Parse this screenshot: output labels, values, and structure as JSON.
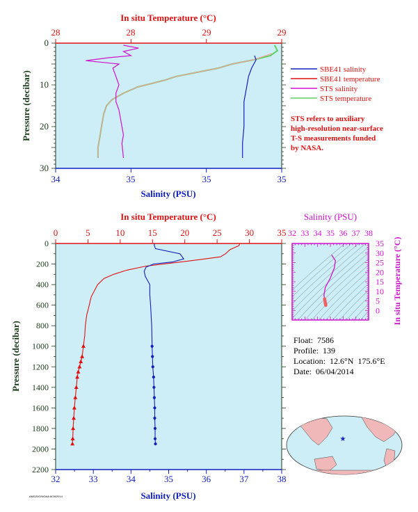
{
  "colors": {
    "plot_bg": "#cdeef6",
    "red": "#e01010",
    "blue": "#1020c0",
    "magenta": "#d010d0",
    "green": "#60d060",
    "pink": "#f0a0a0",
    "axis_green": "#1a3a1a",
    "land": "#f0b8b8"
  },
  "chart_data": [
    {
      "type": "line",
      "panel": "near-surface",
      "top_axis_label": "In situ Temperature (°C)",
      "top_ticks": [
        "28",
        "28",
        "29",
        "29"
      ],
      "top_range": [
        27.9,
        29.5
      ],
      "bottom_axis_label": "Salinity (PSU)",
      "bottom_ticks": [
        "34",
        "35",
        "35",
        "35"
      ],
      "bottom_range": [
        34.0,
        35.5
      ],
      "left_axis_label": "Pressure (decibar)",
      "left_ticks": [
        "0",
        "10",
        "20",
        "30"
      ],
      "ylim": [
        0,
        30
      ],
      "legend": [
        {
          "label": "SBE41 salinity",
          "color": "#1020c0"
        },
        {
          "label": "SBE41 temperature",
          "color": "#e01010"
        },
        {
          "label": "STS salinity",
          "color": "#d010d0"
        },
        {
          "label": "STS temperature",
          "color": "#60d060"
        }
      ],
      "note": [
        "STS refers to auxiliary",
        "high-resolution near-surface",
        "T-S measurements funded",
        "by NASA."
      ],
      "series": [
        {
          "name": "STS temperature",
          "axis": "temp",
          "x": [
            29.45,
            29.47,
            29.42,
            29.3,
            29.15,
            29.05,
            28.9,
            28.75,
            28.68,
            28.6,
            28.48,
            28.38,
            28.3,
            28.26,
            28.24,
            28.23,
            28.22,
            28.21,
            28.2,
            28.2
          ],
          "y": [
            0.5,
            1.8,
            3,
            4,
            5,
            6,
            7,
            8,
            8.8,
            9.5,
            10.5,
            12,
            13.5,
            15,
            17,
            19,
            21,
            23,
            25,
            27.5
          ]
        },
        {
          "name": "SBE41 temperature",
          "axis": "temp",
          "x": [
            29.43,
            29.3,
            29.15,
            29.05,
            28.9,
            28.75,
            28.68,
            28.6,
            28.48,
            28.38,
            28.3,
            28.26,
            28.24,
            28.23,
            28.22,
            28.21,
            28.2,
            28.2
          ],
          "y": [
            2.5,
            4,
            5,
            6,
            7,
            8,
            8.8,
            9.5,
            10.5,
            12,
            13.5,
            15,
            17,
            19,
            21,
            23,
            25,
            27.5
          ]
        },
        {
          "name": "STS salinity",
          "axis": "sal",
          "x": [
            34.45,
            34.55,
            34.45,
            34.5,
            34.35,
            34.2,
            34.42,
            34.38,
            34.4,
            34.42,
            34.4,
            34.4,
            34.42,
            34.43,
            34.44,
            34.45,
            34.44,
            34.45
          ],
          "y": [
            0.5,
            1.2,
            2,
            3,
            3.5,
            4.2,
            5,
            6,
            8,
            10,
            12,
            14,
            16,
            18,
            20,
            22,
            24,
            27.5
          ]
        },
        {
          "name": "SBE41 salinity",
          "axis": "sal",
          "x": [
            35.32,
            35.33,
            35.3,
            35.28,
            35.27,
            35.26,
            35.25,
            35.25,
            35.25,
            35.24,
            35.24
          ],
          "y": [
            3,
            4,
            6,
            8,
            10,
            12,
            14,
            16,
            20,
            24,
            27.5
          ]
        }
      ]
    },
    {
      "type": "line",
      "panel": "full-profile",
      "top_axis_label": "In situ Temperature (°C)",
      "top_ticks": [
        "0",
        "5",
        "10",
        "15",
        "20",
        "25",
        "30",
        "35"
      ],
      "top_range": [
        0,
        35
      ],
      "bottom_axis_label": "Salinity (PSU)",
      "bottom_ticks": [
        "32",
        "33",
        "34",
        "35",
        "36",
        "37",
        "38"
      ],
      "bottom_range": [
        32,
        38
      ],
      "left_axis_label": "Pressure (decibar)",
      "left_ticks": [
        "0",
        "200",
        "400",
        "600",
        "800",
        "1000",
        "1200",
        "1400",
        "1600",
        "1800",
        "2000",
        "2200"
      ],
      "ylim": [
        0,
        2200
      ],
      "series": [
        {
          "name": "temperature",
          "axis": "temp",
          "x": [
            28.5,
            28.4,
            27,
            26.3,
            25.5,
            22,
            18,
            14,
            11,
            9,
            7.5,
            6.5,
            6,
            5.5,
            5.2,
            4.8,
            4.6,
            4.5,
            4.3,
            4.1,
            3.9,
            3.7,
            3.5,
            3.35,
            3.2,
            3.05,
            2.9,
            2.8,
            2.7,
            2.65,
            2.6
          ],
          "y": [
            0,
            20,
            60,
            100,
            130,
            160,
            190,
            220,
            260,
            300,
            340,
            400,
            460,
            520,
            600,
            700,
            800,
            900,
            1000,
            1100,
            1150,
            1200,
            1250,
            1300,
            1400,
            1500,
            1600,
            1700,
            1800,
            1900,
            1950
          ]
        },
        {
          "name": "salinity",
          "axis": "sal",
          "x": [
            34.62,
            34.62,
            34.65,
            35.3,
            35.4,
            35.1,
            34.6,
            34.4,
            34.35,
            34.38,
            34.5,
            34.5,
            34.52,
            34.55,
            34.56,
            34.57,
            34.58,
            34.6,
            34.61,
            34.62,
            34.63,
            34.63,
            34.64,
            34.64,
            34.65
          ],
          "y": [
            0,
            20,
            50,
            100,
            150,
            180,
            200,
            230,
            270,
            320,
            400,
            500,
            600,
            800,
            1000,
            1100,
            1200,
            1300,
            1400,
            1500,
            1600,
            1700,
            1800,
            1900,
            1950
          ]
        }
      ]
    },
    {
      "type": "scatter",
      "panel": "t-s diagram",
      "top_axis_label": "Salinity (PSU)",
      "top_ticks": [
        "32",
        "33",
        "34",
        "35",
        "36",
        "37",
        "38"
      ],
      "right_axis_label": "In situ Temperature (°C)",
      "right_ticks": [
        "0",
        "5",
        "10",
        "15",
        "20",
        "25",
        "30",
        "35"
      ],
      "x": [
        35.1,
        35.4,
        35.3,
        35.0,
        34.6,
        34.5,
        34.55,
        34.58,
        34.6,
        34.62,
        34.63,
        34.64
      ],
      "y": [
        29,
        26,
        22,
        17,
        12,
        8,
        6,
        5,
        4,
        3.5,
        3,
        2.7
      ]
    }
  ],
  "info": {
    "float": "Float:  7586",
    "profile": "Profile:  139",
    "location": "Location:  12.6°N  175.6°E",
    "date": "Date:  06/04/2014"
  },
  "footer_tag": "AMS/SIO/NOAA 8/28/2014"
}
